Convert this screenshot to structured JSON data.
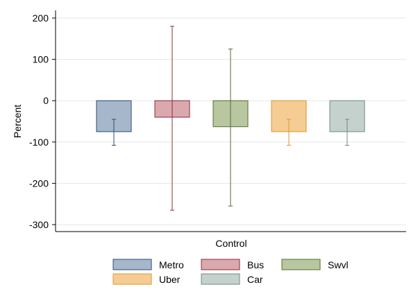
{
  "chart_data": {
    "type": "bar",
    "ylabel": "Percent",
    "categories": [
      "Control"
    ],
    "ylim": [
      -310,
      215
    ],
    "yticks": [
      200,
      100,
      0,
      -100,
      -200,
      -300
    ],
    "grid": true,
    "legend_position": "bottom",
    "series": [
      {
        "name": "Metro",
        "value": -75,
        "ci": [
          -108,
          -45
        ],
        "color": "#a6b7cc",
        "edge": "#2a4d6e"
      },
      {
        "name": "Bus",
        "value": -40,
        "ci": [
          -265,
          180
        ],
        "color": "#d9a9ae",
        "edge": "#8c2b3a"
      },
      {
        "name": "Swvl",
        "value": -63,
        "ci": [
          -255,
          125
        ],
        "color": "#b8c7a0",
        "edge": "#556b2f"
      },
      {
        "name": "Uber",
        "value": -75,
        "ci": [
          -108,
          -45
        ],
        "color": "#f5cc94",
        "edge": "#d99a2b"
      },
      {
        "name": "Car",
        "value": -75,
        "ci": [
          -108,
          -45
        ],
        "color": "#c4d1cc",
        "edge": "#6e8a84"
      }
    ]
  }
}
